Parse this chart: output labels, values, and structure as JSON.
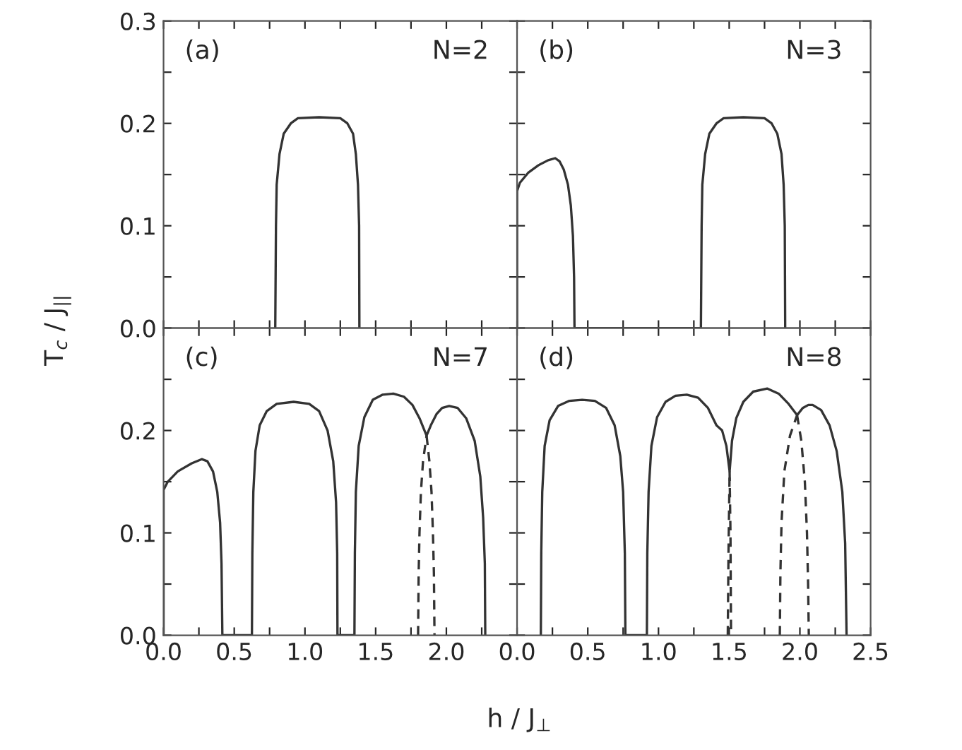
{
  "chart_data": [
    {
      "type": "line",
      "annotations": [
        "(a)",
        "N=2"
      ],
      "ylabel": "T$_{c}$ / J$_{||}$",
      "tick_labels": "y",
      "xlim": [
        0,
        2.5
      ],
      "ylim": [
        0,
        0.3
      ],
      "xticks": [
        0,
        0.25,
        0.5,
        0.75,
        1.0,
        1.25,
        1.5,
        1.75,
        2.0,
        2.25,
        2.5
      ],
      "yticks": [
        {
          "value": 0,
          "label": "0.0"
        },
        {
          "value": 0.05,
          "label": null
        },
        {
          "value": 0.1,
          "label": "0.1"
        },
        {
          "value": 0.15,
          "label": null
        },
        {
          "value": 0.2,
          "label": "0.2"
        },
        {
          "value": 0.25,
          "label": null
        },
        {
          "value": 0.3,
          "label": "0.3"
        }
      ],
      "series": [
        {
          "color": "#333333",
          "line_style": "solid",
          "x": [
            0.79,
            0.795,
            0.8,
            0.82,
            0.85,
            0.9,
            0.95,
            1.1,
            1.25,
            1.3,
            1.34,
            1.36,
            1.375,
            1.383,
            1.385
          ],
          "values": [
            0,
            0.1,
            0.14,
            0.17,
            0.19,
            0.2,
            0.205,
            0.206,
            0.205,
            0.2,
            0.19,
            0.17,
            0.14,
            0.1,
            0
          ]
        }
      ]
    },
    {
      "type": "line",
      "annotations": [
        "(b)",
        "N=3"
      ],
      "tick_labels": false,
      "xlim": [
        0,
        2.5
      ],
      "ylim": [
        0,
        0.3
      ],
      "xticks": [
        0,
        0.25,
        0.5,
        0.75,
        1.0,
        1.25,
        1.5,
        1.75,
        2.0,
        2.25,
        2.5
      ],
      "yticks": [
        0,
        0.05,
        0.1,
        0.15,
        0.2,
        0.25,
        0.3
      ],
      "series": [
        {
          "color": "#333333",
          "line_style": "solid",
          "x": [
            0,
            0,
            0.02,
            0.08,
            0.15,
            0.22,
            0.27,
            0.3,
            0.33,
            0.36,
            0.38,
            0.395,
            0.403,
            0.406,
            1.3,
            1.305,
            1.31,
            1.33,
            1.36,
            1.41,
            1.46,
            1.6,
            1.75,
            1.8,
            1.84,
            1.87,
            1.885,
            1.893,
            1.896
          ],
          "values": [
            0,
            0.134,
            0.142,
            0.152,
            0.159,
            0.164,
            0.166,
            0.163,
            0.155,
            0.14,
            0.12,
            0.09,
            0.05,
            0,
            0,
            0.1,
            0.14,
            0.17,
            0.19,
            0.2,
            0.205,
            0.206,
            0.205,
            0.2,
            0.19,
            0.17,
            0.14,
            0.1,
            0
          ]
        }
      ]
    },
    {
      "type": "line",
      "annotations": [
        "(c)",
        "N=7"
      ],
      "xlim": [
        0,
        2.5
      ],
      "ylim": [
        0,
        0.3
      ],
      "xticks": [
        {
          "value": 0,
          "label": "0.0"
        },
        {
          "value": 0.25,
          "label": null
        },
        {
          "value": 0.5,
          "label": "0.5"
        },
        {
          "value": 0.75,
          "label": null
        },
        {
          "value": 1.0,
          "label": "1.0"
        },
        {
          "value": 1.25,
          "label": null
        },
        {
          "value": 1.5,
          "label": "1.5"
        },
        {
          "value": 1.75,
          "label": null
        },
        {
          "value": 2.0,
          "label": "2.0"
        },
        {
          "value": 2.25,
          "label": null
        },
        {
          "value": 2.5,
          "label": null
        }
      ],
      "yticks": [
        {
          "value": 0,
          "label": "0.0"
        },
        {
          "value": 0.05,
          "label": null
        },
        {
          "value": 0.1,
          "label": "0.1"
        },
        {
          "value": 0.15,
          "label": null
        },
        {
          "value": 0.2,
          "label": "0.2"
        },
        {
          "value": 0.25,
          "label": null
        },
        {
          "value": 0.3,
          "label": null
        }
      ],
      "series": [
        {
          "color": "#333333",
          "line_style": "solid",
          "x": [
            0,
            0,
            0.03,
            0.1,
            0.2,
            0.27,
            0.31,
            0.35,
            0.38,
            0.4,
            0.41,
            0.416,
            0.625,
            0.628,
            0.635,
            0.65,
            0.68,
            0.73,
            0.8,
            0.92,
            1.03,
            1.1,
            1.16,
            1.2,
            1.22,
            1.228,
            1.23,
            1.35,
            1.353,
            1.36,
            1.38,
            1.42,
            1.48,
            1.55,
            1.625,
            1.7,
            1.76,
            1.81,
            1.86,
            1.89,
            1.93,
            1.97,
            2.02,
            2.08,
            2.14,
            2.2,
            2.24,
            2.26,
            2.272,
            2.275
          ],
          "values": [
            0,
            0.142,
            0.15,
            0.16,
            0.168,
            0.172,
            0.17,
            0.16,
            0.14,
            0.11,
            0.07,
            0,
            0,
            0.08,
            0.14,
            0.18,
            0.205,
            0.219,
            0.226,
            0.228,
            0.226,
            0.219,
            0.2,
            0.17,
            0.13,
            0.08,
            0,
            0,
            0.08,
            0.14,
            0.185,
            0.213,
            0.23,
            0.235,
            0.236,
            0.233,
            0.225,
            0.212,
            0.195,
            0.205,
            0.216,
            0.222,
            0.224,
            0.222,
            0.212,
            0.19,
            0.155,
            0.115,
            0.07,
            0
          ]
        },
        {
          "color": "#333333",
          "line_style": "dashed",
          "x": [
            1.86,
            1.88,
            1.895,
            1.905,
            1.912,
            1.916
          ],
          "values": [
            0.195,
            0.17,
            0.14,
            0.1,
            0.06,
            0
          ]
        },
        {
          "color": "#333333",
          "line_style": "dashed",
          "x": [
            1.8,
            1.804,
            1.81,
            1.82,
            1.835,
            1.86
          ],
          "values": [
            0,
            0.06,
            0.1,
            0.14,
            0.17,
            0.195
          ]
        }
      ]
    },
    {
      "type": "line",
      "annotations": [
        "(d)",
        "N=8"
      ],
      "xlabel": "h / J$_{⊥}$",
      "tick_labels": "x",
      "xlim": [
        0,
        2.5
      ],
      "ylim": [
        0,
        0.3
      ],
      "xticks": [
        {
          "value": 0,
          "label": "0.0"
        },
        {
          "value": 0.25,
          "label": null
        },
        {
          "value": 0.5,
          "label": "0.5"
        },
        {
          "value": 0.75,
          "label": null
        },
        {
          "value": 1.0,
          "label": "1.0"
        },
        {
          "value": 1.25,
          "label": null
        },
        {
          "value": 1.5,
          "label": "1.5"
        },
        {
          "value": 1.75,
          "label": null
        },
        {
          "value": 2.0,
          "label": "2.0"
        },
        {
          "value": 2.25,
          "label": null
        },
        {
          "value": 2.5,
          "label": "2.5"
        }
      ],
      "yticks": [
        0,
        0.05,
        0.1,
        0.15,
        0.2,
        0.25,
        0.3
      ],
      "series": [
        {
          "color": "#333333",
          "line_style": "solid",
          "x": [
            0.168,
            0.171,
            0.178,
            0.195,
            0.23,
            0.29,
            0.37,
            0.46,
            0.55,
            0.63,
            0.69,
            0.73,
            0.75,
            0.762,
            0.766,
            0.918,
            0.921,
            0.93,
            0.95,
            0.99,
            1.05,
            1.12,
            1.2,
            1.28,
            1.35,
            1.41,
            1.45,
            1.48,
            1.503,
            1.52,
            1.55,
            1.6,
            1.67,
            1.77,
            1.85,
            1.92,
            1.98,
            2.02,
            2.06,
            2.09,
            2.15,
            2.21,
            2.26,
            2.3,
            2.32,
            2.33
          ],
          "values": [
            0,
            0.08,
            0.14,
            0.185,
            0.21,
            0.224,
            0.229,
            0.23,
            0.229,
            0.222,
            0.205,
            0.175,
            0.14,
            0.08,
            0,
            0,
            0.08,
            0.14,
            0.185,
            0.213,
            0.228,
            0.234,
            0.235,
            0.232,
            0.222,
            0.205,
            0.2,
            0.185,
            0.16,
            0.19,
            0.212,
            0.228,
            0.238,
            0.241,
            0.236,
            0.226,
            0.215,
            0.222,
            0.225,
            0.225,
            0.22,
            0.205,
            0.18,
            0.14,
            0.09,
            0
          ]
        },
        {
          "color": "#333333",
          "line_style": "dashed",
          "x": [
            1.503,
            1.509,
            1.513
          ],
          "values": [
            0.16,
            0.1,
            0
          ]
        },
        {
          "color": "#333333",
          "line_style": "dashed",
          "x": [
            1.49,
            1.495,
            1.503
          ],
          "values": [
            0,
            0.08,
            0.16
          ]
        },
        {
          "color": "#333333",
          "line_style": "dashed",
          "x": [
            1.98,
            2.01,
            2.035,
            2.05,
            2.058,
            2.063
          ],
          "values": [
            0.215,
            0.19,
            0.15,
            0.1,
            0.05,
            0
          ]
        },
        {
          "color": "#333333",
          "line_style": "dashed",
          "x": [
            1.858,
            1.862,
            1.87,
            1.89,
            1.93,
            1.98
          ],
          "values": [
            0,
            0.06,
            0.11,
            0.16,
            0.195,
            0.215
          ]
        }
      ]
    }
  ]
}
